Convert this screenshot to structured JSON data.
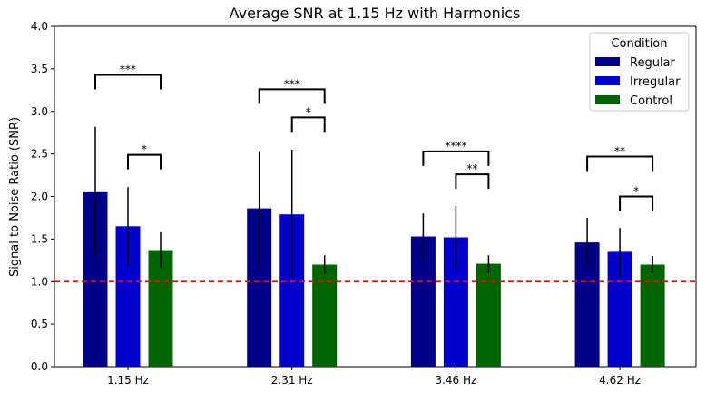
{
  "chart_data": {
    "type": "bar",
    "title": "Average SNR at 1.15 Hz with Harmonics",
    "xlabel": "",
    "ylabel": "Signal to Noise Ratio (SNR)",
    "ylim": [
      0,
      4.0
    ],
    "yticks": [
      "0.0",
      "0.5",
      "1.0",
      "1.5",
      "2.0",
      "2.5",
      "3.0",
      "3.5",
      "4.0"
    ],
    "categories": [
      "1.15 Hz",
      "2.31 Hz",
      "3.46 Hz",
      "4.62 Hz"
    ],
    "reference_line": {
      "y": 1.0,
      "color": "#ff0000",
      "style": "dashed"
    },
    "legend": {
      "title": "Condition",
      "position": "top-right"
    },
    "series": [
      {
        "name": "Regular",
        "color": "#00008b",
        "values": [
          2.06,
          1.86,
          1.53,
          1.46
        ],
        "err_low": [
          1.3,
          1.18,
          1.25,
          1.16
        ],
        "err_high": [
          2.82,
          2.53,
          1.8,
          1.75
        ]
      },
      {
        "name": "Irregular",
        "color": "#0000cd",
        "values": [
          1.65,
          1.79,
          1.52,
          1.35
        ],
        "err_low": [
          1.18,
          1.05,
          1.15,
          1.05
        ],
        "err_high": [
          2.11,
          2.55,
          1.89,
          1.63
        ]
      },
      {
        "name": "Control",
        "color": "#006400",
        "values": [
          1.37,
          1.2,
          1.21,
          1.2
        ],
        "err_low": [
          1.16,
          1.09,
          1.1,
          1.1
        ],
        "err_high": [
          1.58,
          1.31,
          1.31,
          1.3
        ]
      }
    ],
    "significance": [
      {
        "category": 0,
        "from": 0,
        "to": 2,
        "y": 3.43,
        "label": "***"
      },
      {
        "category": 0,
        "from": 1,
        "to": 2,
        "y": 2.49,
        "label": "*"
      },
      {
        "category": 1,
        "from": 0,
        "to": 2,
        "y": 3.26,
        "label": "***"
      },
      {
        "category": 1,
        "from": 1,
        "to": 2,
        "y": 2.93,
        "label": "*"
      },
      {
        "category": 2,
        "from": 0,
        "to": 2,
        "y": 2.53,
        "label": "****"
      },
      {
        "category": 2,
        "from": 1,
        "to": 2,
        "y": 2.26,
        "label": "**"
      },
      {
        "category": 3,
        "from": 0,
        "to": 2,
        "y": 2.47,
        "label": "**"
      },
      {
        "category": 3,
        "from": 1,
        "to": 2,
        "y": 2.0,
        "label": "*"
      }
    ]
  }
}
